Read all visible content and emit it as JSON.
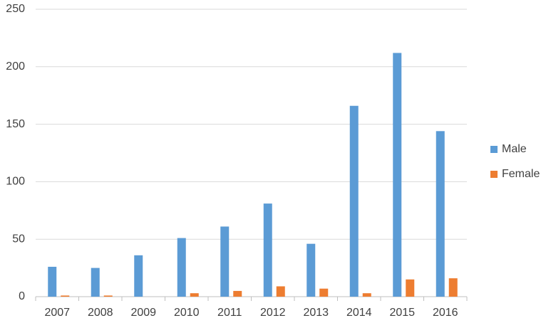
{
  "chart_data": {
    "type": "bar",
    "categories": [
      "2007",
      "2008",
      "2009",
      "2010",
      "2011",
      "2012",
      "2013",
      "2014",
      "2015",
      "2016"
    ],
    "series": [
      {
        "name": "Male",
        "color": "#5b9bd5",
        "values": [
          26,
          25,
          36,
          51,
          61,
          81,
          46,
          166,
          212,
          144
        ]
      },
      {
        "name": "Female",
        "color": "#ed7d31",
        "values": [
          1,
          1,
          0,
          3,
          5,
          9,
          7,
          3,
          15,
          16
        ]
      }
    ],
    "ylim": [
      0,
      250
    ],
    "yticks": [
      0,
      50,
      100,
      150,
      200,
      250
    ],
    "grid": true,
    "legend": "right"
  }
}
